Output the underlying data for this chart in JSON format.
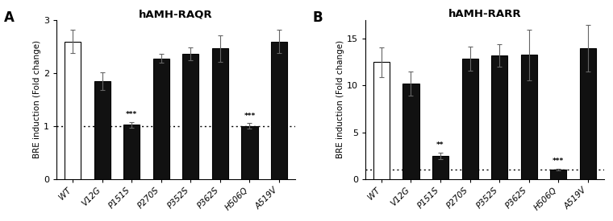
{
  "panel_A": {
    "title": "hAMH-RAQR",
    "categories": [
      "WT",
      "V12G",
      "P151S",
      "P270S",
      "P352S",
      "P362S",
      "H506Q",
      "A519V"
    ],
    "values": [
      2.6,
      1.85,
      1.02,
      2.28,
      2.37,
      2.47,
      1.0,
      2.6
    ],
    "errors": [
      0.22,
      0.17,
      0.05,
      0.08,
      0.12,
      0.25,
      0.05,
      0.22
    ],
    "bar_colors": [
      "#ffffff",
      "#111111",
      "#111111",
      "#111111",
      "#111111",
      "#111111",
      "#111111",
      "#111111"
    ],
    "edge_colors": [
      "#000000",
      "#000000",
      "#000000",
      "#000000",
      "#000000",
      "#000000",
      "#000000",
      "#000000"
    ],
    "ylim": [
      0,
      3
    ],
    "yticks": [
      0,
      1,
      2,
      3
    ],
    "ylabel": "BRE induction (Fold change)",
    "dotted_line_y": 1.0,
    "significance": {
      "P151S": "***",
      "H506Q": "***"
    },
    "panel_label": "A"
  },
  "panel_B": {
    "title": "hAMH-RARR",
    "categories": [
      "WT",
      "V12G",
      "P151S",
      "P270S",
      "P352S",
      "P362S",
      "H506Q",
      "A519V"
    ],
    "values": [
      12.5,
      10.2,
      2.45,
      12.9,
      13.2,
      13.3,
      1.0,
      14.0
    ],
    "errors": [
      1.6,
      1.3,
      0.35,
      1.3,
      1.2,
      2.7,
      0.12,
      2.5
    ],
    "bar_colors": [
      "#ffffff",
      "#111111",
      "#111111",
      "#111111",
      "#111111",
      "#111111",
      "#111111",
      "#111111"
    ],
    "edge_colors": [
      "#000000",
      "#000000",
      "#000000",
      "#000000",
      "#000000",
      "#000000",
      "#000000",
      "#000000"
    ],
    "ylim": [
      0,
      17
    ],
    "yticks": [
      0,
      5,
      10,
      15
    ],
    "ylabel": "BRE induction (Fold change)",
    "dotted_line_y": 1.0,
    "significance": {
      "P151S": "**",
      "H506Q": "***"
    },
    "panel_label": "B"
  },
  "bar_width": 0.55,
  "figure_bg": "#ffffff"
}
